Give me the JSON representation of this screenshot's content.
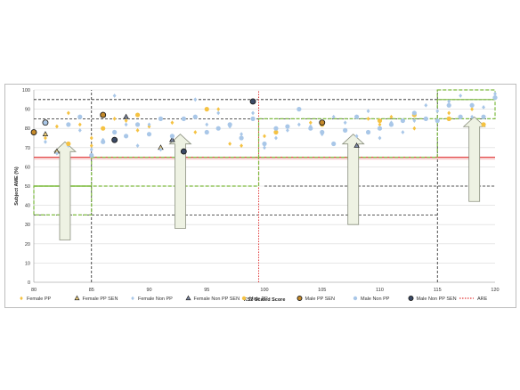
{
  "chart_data": {
    "type": "scatter",
    "xlabel": "KS2 Scaled Score",
    "ylabel": "Subject AME (%)",
    "xlim": [
      80,
      120
    ],
    "ylim": [
      0,
      100
    ],
    "x_ticks": [
      "80",
      "85",
      "90",
      "95",
      "100",
      "105",
      "110",
      "115",
      "120"
    ],
    "y_ticks": [
      "0",
      "10",
      "20",
      "30",
      "40",
      "50",
      "60",
      "70",
      "80",
      "90",
      "100"
    ],
    "grid": true,
    "legend_position": "bottom",
    "series": [
      {
        "name": "Female PP",
        "marker": "diamond",
        "color": "#f5c242",
        "points": [
          [
            81,
            75
          ],
          [
            82,
            81
          ],
          [
            83,
            88
          ],
          [
            84,
            82
          ],
          [
            85,
            75
          ],
          [
            85,
            71
          ],
          [
            87,
            85
          ],
          [
            88,
            84
          ],
          [
            89,
            79
          ],
          [
            90,
            81
          ],
          [
            92,
            83
          ],
          [
            94,
            78
          ],
          [
            96,
            90
          ],
          [
            97,
            72
          ],
          [
            98,
            71
          ],
          [
            100,
            76
          ],
          [
            101,
            80
          ],
          [
            104,
            83
          ],
          [
            109,
            85
          ],
          [
            110,
            82
          ],
          [
            111,
            86
          ],
          [
            113,
            80
          ],
          [
            114,
            85
          ],
          [
            116,
            88
          ],
          [
            118,
            90
          ]
        ]
      },
      {
        "name": "Female PP SEN",
        "marker": "triangle",
        "color": "#f5c242",
        "points": [
          [
            81,
            77
          ],
          [
            82,
            68
          ],
          [
            86,
            87
          ],
          [
            91,
            70
          ],
          [
            92,
            74
          ]
        ]
      },
      {
        "name": "Female Non PP",
        "marker": "diamond",
        "color": "#a9c7e8",
        "points": [
          [
            81,
            73
          ],
          [
            82,
            67
          ],
          [
            83,
            71
          ],
          [
            84,
            79
          ],
          [
            85,
            69
          ],
          [
            86,
            74
          ],
          [
            87,
            97
          ],
          [
            88,
            82
          ],
          [
            89,
            71
          ],
          [
            90,
            82
          ],
          [
            91,
            69
          ],
          [
            92,
            75
          ],
          [
            93,
            85
          ],
          [
            94,
            95
          ],
          [
            95,
            82
          ],
          [
            96,
            88
          ],
          [
            97,
            81
          ],
          [
            98,
            77
          ],
          [
            99,
            88
          ],
          [
            100,
            70
          ],
          [
            101,
            75
          ],
          [
            102,
            79
          ],
          [
            103,
            82
          ],
          [
            104,
            81
          ],
          [
            105,
            77
          ],
          [
            106,
            86
          ],
          [
            107,
            83
          ],
          [
            108,
            76
          ],
          [
            109,
            89
          ],
          [
            110,
            75
          ],
          [
            111,
            83
          ],
          [
            112,
            78
          ],
          [
            113,
            84
          ],
          [
            114,
            92
          ],
          [
            115,
            89
          ],
          [
            116,
            94
          ],
          [
            117,
            97
          ],
          [
            118,
            86
          ],
          [
            119,
            91
          ],
          [
            120,
            98
          ]
        ]
      },
      {
        "name": "Female Non PP SEN",
        "marker": "triangle",
        "color": "#4a5a78",
        "points": [
          [
            88,
            86
          ],
          [
            92,
            74
          ],
          [
            108,
            71
          ]
        ]
      },
      {
        "name": "Male PP",
        "marker": "circle",
        "color": "#f5c242",
        "points": [
          [
            80,
            78
          ],
          [
            83,
            72
          ],
          [
            86,
            80
          ],
          [
            89,
            87
          ],
          [
            95,
            90
          ],
          [
            101,
            78
          ],
          [
            105,
            82
          ],
          [
            110,
            84
          ],
          [
            113,
            87
          ],
          [
            116,
            85
          ],
          [
            119,
            82
          ]
        ]
      },
      {
        "name": "Male PP SEN",
        "marker": "circle-outline",
        "color": "#c58a2a",
        "points": [
          [
            80,
            78
          ],
          [
            81,
            83
          ],
          [
            86,
            87
          ],
          [
            105,
            83
          ]
        ]
      },
      {
        "name": "Male Non PP",
        "marker": "circle",
        "color": "#a9c7e8",
        "points": [
          [
            81,
            83
          ],
          [
            83,
            82
          ],
          [
            84,
            86
          ],
          [
            85,
            66
          ],
          [
            86,
            73
          ],
          [
            87,
            78
          ],
          [
            88,
            76
          ],
          [
            89,
            82
          ],
          [
            90,
            77
          ],
          [
            91,
            85
          ],
          [
            92,
            76
          ],
          [
            93,
            85
          ],
          [
            94,
            86
          ],
          [
            95,
            78
          ],
          [
            96,
            80
          ],
          [
            97,
            82
          ],
          [
            98,
            75
          ],
          [
            99,
            85
          ],
          [
            100,
            72
          ],
          [
            101,
            80
          ],
          [
            102,
            81
          ],
          [
            103,
            90
          ],
          [
            104,
            80
          ],
          [
            105,
            78
          ],
          [
            106,
            72
          ],
          [
            107,
            79
          ],
          [
            108,
            86
          ],
          [
            109,
            78
          ],
          [
            110,
            80
          ],
          [
            111,
            82
          ],
          [
            112,
            84
          ],
          [
            113,
            88
          ],
          [
            114,
            85
          ],
          [
            115,
            84
          ],
          [
            116,
            92
          ],
          [
            117,
            86
          ],
          [
            118,
            92
          ],
          [
            119,
            86
          ],
          [
            120,
            96
          ]
        ]
      },
      {
        "name": "Male Non PP SEN",
        "marker": "circle-outline",
        "color": "#3b4a66",
        "points": [
          [
            87,
            74
          ],
          [
            93,
            68
          ],
          [
            99,
            94
          ]
        ]
      },
      {
        "name": "ARE",
        "marker": "dotted-line",
        "color": "#e23b3b",
        "x": 99.5
      }
    ]
  },
  "legend": [
    "Female PP",
    "Female PP SEN",
    "Female Non PP",
    "Female Non PP SEN",
    "Male PP",
    "Male PP SEN",
    "Male Non PP",
    "Male Non PP SEN",
    "ARE"
  ],
  "colors": {
    "grid": "#d9d9d9",
    "threshold_band": "#7dbb3f",
    "dashed": "#222222",
    "arrow_fill": "#eef2e3",
    "arrow_stroke": "#8a8f7e",
    "red_line": "#e23b3b"
  }
}
